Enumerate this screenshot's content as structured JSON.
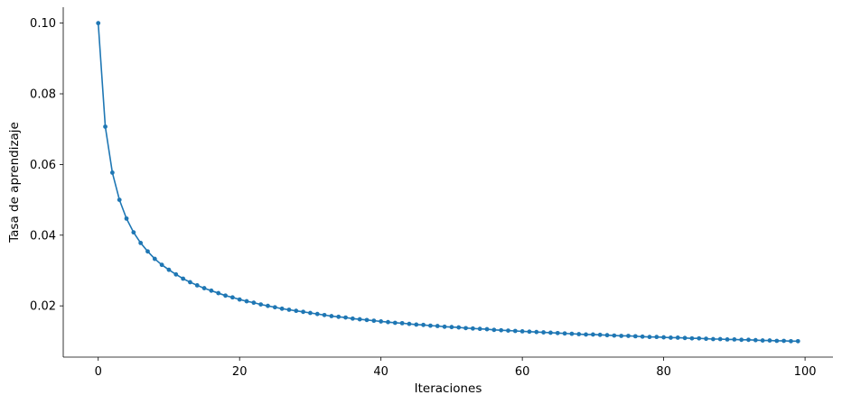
{
  "chart_data": {
    "type": "line",
    "xlabel": "Iteraciones",
    "ylabel": "Tasa de aprendizaje",
    "xlim": [
      -4.95,
      103.95
    ],
    "ylim": [
      0.0055,
      0.1045
    ],
    "x_ticks": [
      0,
      20,
      40,
      60,
      80,
      100
    ],
    "x_tick_labels": [
      "0",
      "20",
      "40",
      "60",
      "80",
      "100"
    ],
    "y_ticks": [
      0.02,
      0.04,
      0.06,
      0.08,
      0.1
    ],
    "y_tick_labels": [
      "0.02",
      "0.04",
      "0.06",
      "0.08",
      "0.10"
    ],
    "grid": false,
    "series": [
      {
        "color": "#1f77b4",
        "marker": "circle",
        "x": [
          0,
          1,
          2,
          3,
          4,
          5,
          6,
          7,
          8,
          9,
          10,
          11,
          12,
          13,
          14,
          15,
          16,
          17,
          18,
          19,
          20,
          21,
          22,
          23,
          24,
          25,
          26,
          27,
          28,
          29,
          30,
          31,
          32,
          33,
          34,
          35,
          36,
          37,
          38,
          39,
          40,
          41,
          42,
          43,
          44,
          45,
          46,
          47,
          48,
          49,
          50,
          51,
          52,
          53,
          54,
          55,
          56,
          57,
          58,
          59,
          60,
          61,
          62,
          63,
          64,
          65,
          66,
          67,
          68,
          69,
          70,
          71,
          72,
          73,
          74,
          75,
          76,
          77,
          78,
          79,
          80,
          81,
          82,
          83,
          84,
          85,
          86,
          87,
          88,
          89,
          90,
          91,
          92,
          93,
          94,
          95,
          96,
          97,
          98,
          99
        ],
        "y": [
          0.1,
          0.0707,
          0.0577,
          0.05,
          0.0447,
          0.0408,
          0.0378,
          0.0354,
          0.0333,
          0.0316,
          0.0302,
          0.0289,
          0.0277,
          0.0267,
          0.0258,
          0.025,
          0.0243,
          0.0236,
          0.0229,
          0.0224,
          0.0218,
          0.0213,
          0.0209,
          0.0204,
          0.02,
          0.0196,
          0.0192,
          0.0189,
          0.0186,
          0.0183,
          0.018,
          0.0177,
          0.0174,
          0.0171,
          0.0169,
          0.0167,
          0.0164,
          0.0162,
          0.016,
          0.0158,
          0.0156,
          0.0154,
          0.0152,
          0.0151,
          0.0149,
          0.0147,
          0.0146,
          0.0144,
          0.0143,
          0.0141,
          0.014,
          0.0139,
          0.0137,
          0.0136,
          0.0135,
          0.0134,
          0.0132,
          0.0131,
          0.013,
          0.0129,
          0.0128,
          0.0127,
          0.0126,
          0.0125,
          0.0124,
          0.0123,
          0.0122,
          0.0121,
          0.012,
          0.0119,
          0.0119,
          0.0118,
          0.0117,
          0.0116,
          0.0115,
          0.0115,
          0.0114,
          0.0113,
          0.0112,
          0.0112,
          0.0111,
          0.011,
          0.011,
          0.0109,
          0.0108,
          0.0108,
          0.0107,
          0.0106,
          0.0106,
          0.0105,
          0.0105,
          0.0104,
          0.0104,
          0.0103,
          0.0102,
          0.0102,
          0.0101,
          0.0101,
          0.01,
          0.01
        ]
      }
    ]
  }
}
